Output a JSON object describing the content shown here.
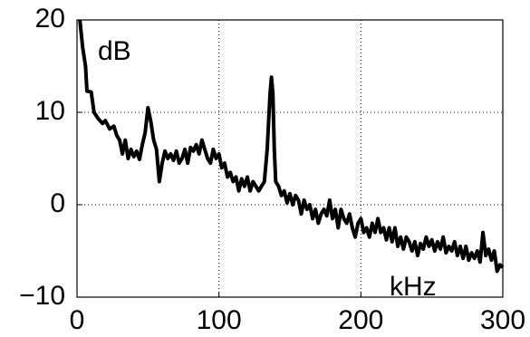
{
  "chart_data": {
    "type": "line",
    "annotations": [
      "dB",
      "kHz"
    ],
    "color": "#000000",
    "grid": true,
    "xlim": [
      0,
      300
    ],
    "xticks": [
      0,
      100,
      200,
      300
    ],
    "ylim": [
      -10,
      20
    ],
    "yticks": [
      {
        "value": -10,
        "label": "−10"
      },
      0,
      10,
      20
    ],
    "x": [
      2,
      4,
      6,
      7,
      10,
      12,
      15,
      18,
      20,
      23,
      26,
      28,
      30,
      32,
      34,
      36,
      38,
      40,
      42,
      44,
      46,
      48,
      50,
      52,
      54,
      56,
      58,
      60,
      62,
      64,
      66,
      68,
      70,
      72,
      74,
      76,
      78,
      80,
      82,
      84,
      86,
      88,
      90,
      92,
      94,
      96,
      98,
      100,
      102,
      104,
      106,
      108,
      110,
      112,
      114,
      116,
      118,
      120,
      122,
      124,
      126,
      128,
      130,
      132,
      134,
      136,
      137,
      138,
      139,
      140,
      142,
      144,
      146,
      148,
      150,
      152,
      154,
      156,
      158,
      160,
      162,
      164,
      166,
      168,
      170,
      172,
      174,
      176,
      178,
      180,
      182,
      184,
      186,
      188,
      190,
      192,
      194,
      196,
      198,
      200,
      202,
      204,
      206,
      208,
      210,
      212,
      214,
      216,
      218,
      220,
      222,
      224,
      226,
      228,
      230,
      232,
      234,
      236,
      238,
      240,
      242,
      244,
      246,
      248,
      250,
      252,
      254,
      256,
      258,
      260,
      262,
      264,
      266,
      268,
      270,
      272,
      274,
      276,
      278,
      280,
      282,
      284,
      286,
      288,
      290,
      292,
      294,
      296,
      298,
      300
    ],
    "values": [
      20,
      17,
      15,
      12.3,
      12.2,
      10,
      9.3,
      8.8,
      9.1,
      8.2,
      8.5,
      7.5,
      7,
      5.5,
      7,
      5,
      6,
      5.2,
      5.8,
      4.9,
      6.5,
      7.8,
      10.5,
      9,
      7,
      6,
      2.5,
      4.5,
      5.8,
      5,
      5.5,
      4.8,
      5.8,
      4.5,
      5,
      6,
      4.5,
      6.2,
      5.8,
      6.5,
      5.5,
      7,
      6,
      5,
      4.5,
      6,
      5,
      5.5,
      4,
      4.5,
      3,
      3.5,
      2.5,
      3,
      1.5,
      2.8,
      2,
      3,
      1.5,
      2.5,
      2,
      1.5,
      2,
      2.5,
      6,
      12,
      13.8,
      12,
      6,
      2.5,
      2,
      1,
      1.5,
      0.2,
      1.2,
      0,
      1,
      0.5,
      -1,
      0.5,
      -0.5,
      0,
      -1.5,
      -0.5,
      -2,
      -1,
      -0.5,
      -1.2,
      0.5,
      -1.5,
      -0.5,
      -2.5,
      -0.5,
      -1.5,
      -2,
      -1,
      -2.5,
      -3.5,
      -2,
      -1.5,
      -3,
      -2.5,
      -3.5,
      -2,
      -3,
      -1.5,
      -3,
      -2.5,
      -3.8,
      -2.5,
      -4,
      -2.5,
      -4.5,
      -3.5,
      -4.8,
      -3.5,
      -4,
      -5,
      -4,
      -5.5,
      -4.2,
      -4.8,
      -3.5,
      -4.5,
      -3.8,
      -5,
      -4,
      -4.8,
      -3.5,
      -5.2,
      -4.5,
      -5,
      -4,
      -5.5,
      -4.5,
      -5.8,
      -4.5,
      -6,
      -5.2,
      -5.8,
      -5,
      -6.2,
      -3,
      -5.5,
      -4.8,
      -6,
      -5,
      -7.2,
      -6.5,
      -6.8
    ]
  }
}
